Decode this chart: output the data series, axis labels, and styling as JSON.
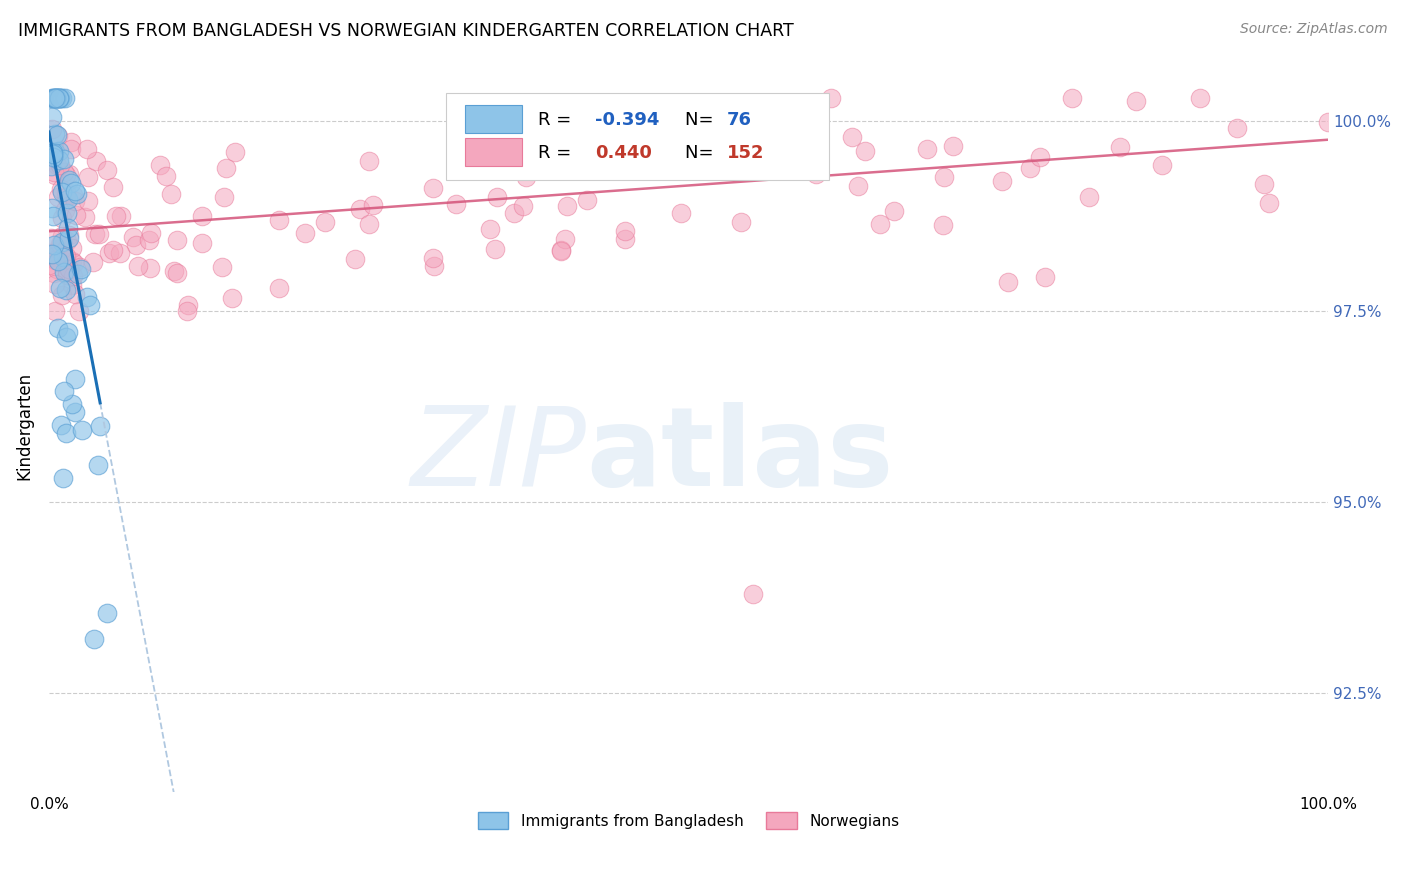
{
  "title": "IMMIGRANTS FROM BANGLADESH VS NORWEGIAN KINDERGARTEN CORRELATION CHART",
  "source": "Source: ZipAtlas.com",
  "ylabel": "Kindergarten",
  "legend_blue_r": "-0.394",
  "legend_blue_n": "76",
  "legend_pink_r": "0.440",
  "legend_pink_n": "152",
  "xmin": 0.0,
  "xmax": 100.0,
  "ymin": 91.2,
  "ymax": 100.8,
  "yticks": [
    92.5,
    95.0,
    97.5,
    100.0
  ],
  "ytick_labels": [
    "92.5%",
    "95.0%",
    "97.5%",
    "100.0%"
  ],
  "blue_color": "#8ec4e8",
  "blue_edge_color": "#5a9fd4",
  "pink_color": "#f4a7be",
  "pink_edge_color": "#e87a9a",
  "blue_line_color": "#1a6fb5",
  "pink_line_color": "#d4547a",
  "blue_line_x0": 0.0,
  "blue_line_y0": 99.85,
  "blue_line_x1": 4.0,
  "blue_line_y1": 96.3,
  "blue_dash_x1": 50.0,
  "pink_line_x0": 0.0,
  "pink_line_y0": 98.55,
  "pink_line_x1": 100.0,
  "pink_line_y1": 99.75
}
